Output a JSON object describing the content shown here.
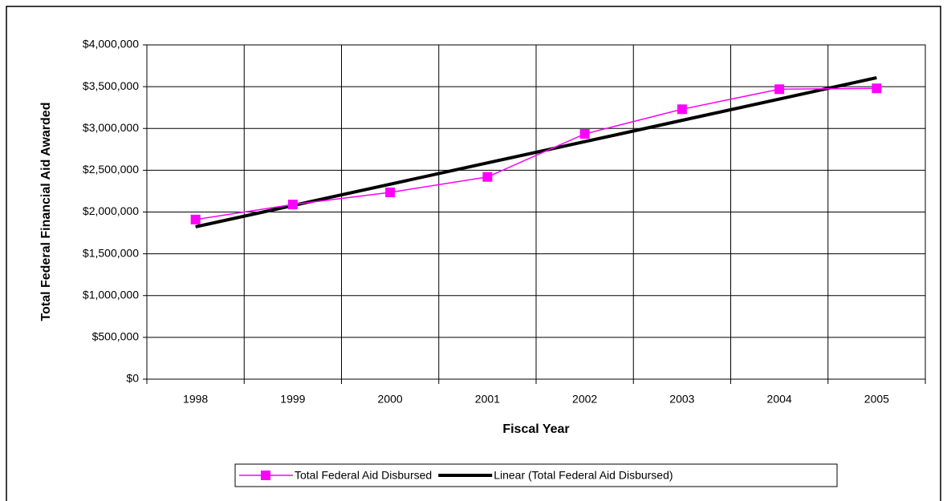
{
  "chart_data": {
    "type": "line",
    "x_label": "Fiscal Year",
    "y_label": "Total Federal Financial Aid Awarded",
    "categories": [
      "1998",
      "1999",
      "2000",
      "2001",
      "2002",
      "2003",
      "2004",
      "2005"
    ],
    "series": [
      {
        "name": "Total Federal Aid Disbursed",
        "color": "#ff00ff",
        "marker": "square",
        "values": [
          1910000,
          2090000,
          2235000,
          2420000,
          2935000,
          3230000,
          3470000,
          3480000
        ]
      },
      {
        "name": "Linear (Total Federal Aid Disbursed)",
        "color": "#000000",
        "marker": "none",
        "values": [
          1823000,
          2078000,
          2333000,
          2588000,
          2842000,
          3097000,
          3352000,
          3607000
        ]
      }
    ],
    "ylim": [
      0,
      4000000
    ],
    "yticks": [
      {
        "value": 0,
        "label": "$0"
      },
      {
        "value": 500000,
        "label": "$500,000"
      },
      {
        "value": 1000000,
        "label": "$1,000,000"
      },
      {
        "value": 1500000,
        "label": "$1,500,000"
      },
      {
        "value": 2000000,
        "label": "$2,000,000"
      },
      {
        "value": 2500000,
        "label": "$2,500,000"
      },
      {
        "value": 3000000,
        "label": "$3,000,000"
      },
      {
        "value": 3500000,
        "label": "$3,500,000"
      },
      {
        "value": 4000000,
        "label": "$4,000,000"
      }
    ],
    "grid": true,
    "legend": "bottom"
  }
}
